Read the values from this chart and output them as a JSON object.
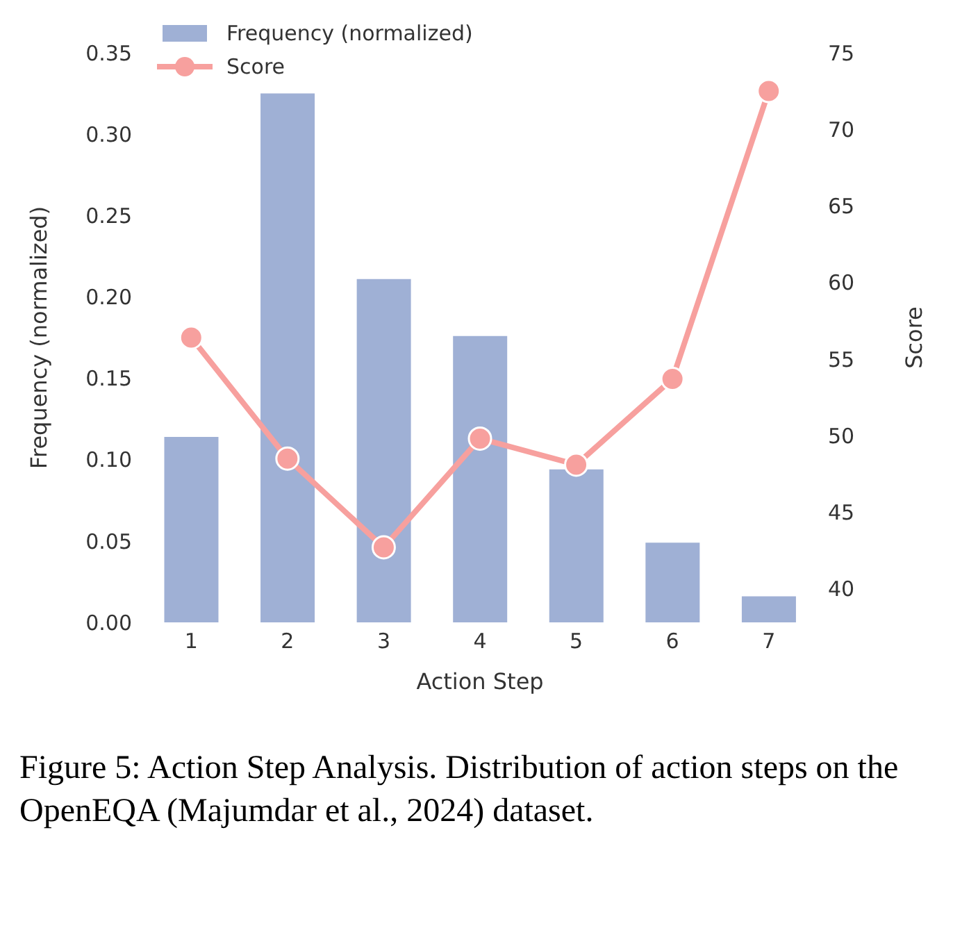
{
  "chart_data": {
    "type": "bar",
    "xlabel": "Action Step",
    "ylabel": "Frequency (normalized)",
    "y2label": "Score",
    "categories": [
      "1",
      "2",
      "3",
      "4",
      "5",
      "6",
      "7"
    ],
    "series": [
      {
        "name": "Frequency (normalized)",
        "color": "#9fb0d5",
        "values": [
          0.114,
          0.325,
          0.211,
          0.176,
          0.094,
          0.049,
          0.016
        ]
      },
      {
        "name": "Score",
        "type": "line",
        "axis": "y2",
        "color": "#f7a09e",
        "marker": "circle",
        "values": [
          56.4,
          48.5,
          42.7,
          49.8,
          48.1,
          53.7,
          72.5
        ]
      }
    ],
    "ylim": [
      0,
      0.35
    ],
    "yticks": [
      {
        "value": 0,
        "label": "0.00"
      },
      0.05,
      {
        "value": 0.1,
        "label": "0.10"
      },
      0.15,
      {
        "value": 0.2,
        "label": "0.20"
      },
      0.25,
      {
        "value": 0.3,
        "label": "0.30"
      },
      0.35
    ],
    "y2lim": [
      37.8,
      75
    ],
    "y2ticks": [
      40,
      45,
      50,
      55,
      60,
      65,
      70,
      75
    ],
    "grid": false,
    "legend": "top left",
    "annotations": [
      "Figure 5: Action Step Analysis. Distribution of action steps on the OpenEQA (Majumdar et al., 2024) dataset."
    ]
  }
}
